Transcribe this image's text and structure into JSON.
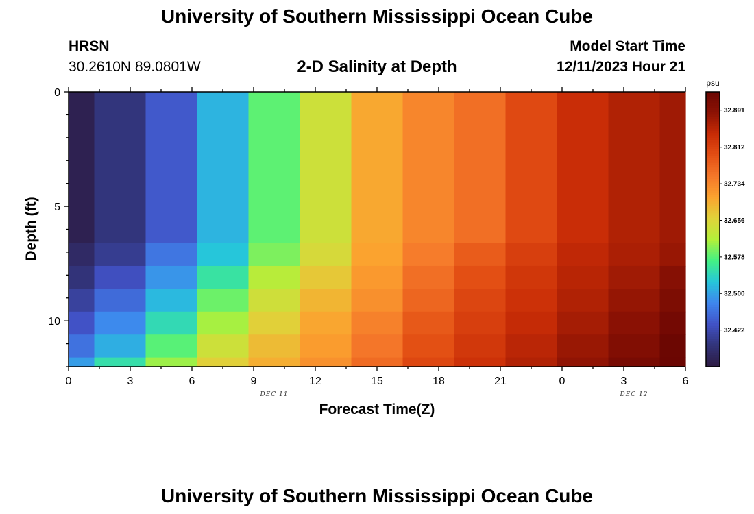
{
  "header": {
    "title": "University of Southern Mississippi Ocean Cube",
    "station": "HRSN",
    "coords": "30.2610N  89.0801W",
    "plot_title": "2-D Salinity at Depth",
    "model_label": "Model Start Time",
    "model_time": "12/11/2023 Hour 21"
  },
  "footer": {
    "title": "University of Southern Mississippi Ocean Cube"
  },
  "chart_data": {
    "type": "heatmap",
    "xlabel": "Forecast Time(Z)",
    "ylabel": "Depth (ft)",
    "x_hours": [
      0,
      36
    ],
    "ylim": [
      0,
      12
    ],
    "x_tick_labels": [
      "0",
      "3",
      "6",
      "9",
      "12",
      "15",
      "18",
      "21",
      "0",
      "3",
      "6"
    ],
    "date_labels": [
      {
        "text": "DEC 11",
        "at_hour": 12
      },
      {
        "text": "DEC 12",
        "at_hour": 33
      }
    ],
    "y_tick_labels": [
      "0",
      "5",
      "10"
    ],
    "y_ticks": [
      0,
      5,
      10
    ],
    "colorbar": {
      "unit": "psu",
      "range": [
        32.344,
        32.93
      ],
      "tick_values": [
        "32.891",
        "32.812",
        "32.734",
        "32.656",
        "32.578",
        "32.500",
        "32.422"
      ],
      "colors": [
        "#2d1a42",
        "#32347a",
        "#4152c6",
        "#3f86ee",
        "#26c5db",
        "#43f185",
        "#b2f03a",
        "#e0d33a",
        "#fba32f",
        "#f5782a",
        "#e34f14",
        "#c82c06",
        "#8c1204",
        "#6b0602"
      ]
    },
    "time_edges": [
      0,
      1.5,
      4.5,
      7.5,
      10.5,
      13.5,
      16.5,
      19.5,
      22.5,
      25.5,
      28.5,
      31.5,
      34.5,
      36
    ],
    "depth_edges": [
      0,
      6.6,
      7.6,
      8.6,
      9.6,
      10.6,
      11.6,
      12
    ],
    "values": [
      [
        32.356,
        32.39,
        32.44,
        32.512,
        32.58,
        32.64,
        32.7,
        32.735,
        32.76,
        32.802,
        32.838,
        32.858,
        32.871
      ],
      [
        32.372,
        32.402,
        32.465,
        32.525,
        32.593,
        32.65,
        32.705,
        32.745,
        32.78,
        32.815,
        32.846,
        32.862,
        32.876
      ],
      [
        32.388,
        32.43,
        32.49,
        32.554,
        32.62,
        32.67,
        32.715,
        32.76,
        32.795,
        32.826,
        32.852,
        32.87,
        32.893
      ],
      [
        32.41,
        32.456,
        32.516,
        32.586,
        32.642,
        32.688,
        32.725,
        32.77,
        32.806,
        32.834,
        32.858,
        32.878,
        32.905
      ],
      [
        32.434,
        32.482,
        32.545,
        32.61,
        32.662,
        32.702,
        32.74,
        32.784,
        32.815,
        32.842,
        32.866,
        32.888,
        32.918
      ],
      [
        32.462,
        32.508,
        32.578,
        32.64,
        32.682,
        32.712,
        32.752,
        32.794,
        32.825,
        32.85,
        32.875,
        32.9,
        32.928
      ],
      [
        32.496,
        32.55,
        32.606,
        32.662,
        32.694,
        32.724,
        32.764,
        32.805,
        32.833,
        32.857,
        32.882,
        32.912,
        32.94
      ]
    ]
  }
}
